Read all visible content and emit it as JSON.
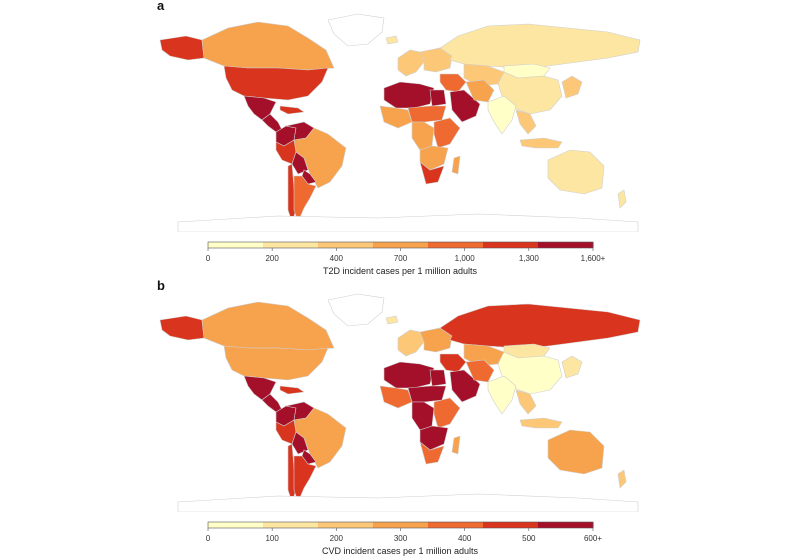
{
  "colors": {
    "ocean": "#ffffff",
    "nodata": "#ffffff",
    "border": "#cfcfcf",
    "bins": [
      "#ffffc7",
      "#fde6a1",
      "#fcc878",
      "#f7a24d",
      "#ef6a30",
      "#d9351e",
      "#a40f2a"
    ]
  },
  "panels": [
    {
      "letter": "a",
      "legend_title": "T2D incident cases per 1 million adults",
      "legend_ticks": [
        "0",
        "200",
        "400",
        "700",
        "1,000",
        "1,300",
        "1,600+"
      ],
      "regions": [
        {
          "name": "Alaska",
          "bin": 5
        },
        {
          "name": "Canada",
          "bin": 3
        },
        {
          "name": "United States",
          "bin": 5
        },
        {
          "name": "Mexico",
          "bin": 6
        },
        {
          "name": "Central America",
          "bin": 6
        },
        {
          "name": "Caribbean",
          "bin": 5
        },
        {
          "name": "Colombia",
          "bin": 6
        },
        {
          "name": "Venezuela",
          "bin": 6
        },
        {
          "name": "Brazil",
          "bin": 3
        },
        {
          "name": "Peru",
          "bin": 5
        },
        {
          "name": "Bolivia",
          "bin": 6
        },
        {
          "name": "Paraguay",
          "bin": 6
        },
        {
          "name": "Chile",
          "bin": 5
        },
        {
          "name": "Argentina",
          "bin": 4
        },
        {
          "name": "Greenland",
          "bin": -1
        },
        {
          "name": "Iceland",
          "bin": 1
        },
        {
          "name": "Western Europe",
          "bin": 2
        },
        {
          "name": "Eastern Europe",
          "bin": 2
        },
        {
          "name": "Russia",
          "bin": 1
        },
        {
          "name": "Central Asia",
          "bin": 2
        },
        {
          "name": "Mongolia",
          "bin": 0
        },
        {
          "name": "China",
          "bin": 1
        },
        {
          "name": "Korea & Japan",
          "bin": 2
        },
        {
          "name": "Middle East",
          "bin": 4
        },
        {
          "name": "Arabian Peninsula",
          "bin": 6
        },
        {
          "name": "Iran",
          "bin": 3
        },
        {
          "name": "India",
          "bin": 0
        },
        {
          "name": "Southeast Asia",
          "bin": 2
        },
        {
          "name": "Indonesia",
          "bin": 2
        },
        {
          "name": "Australia",
          "bin": 1
        },
        {
          "name": "New Zealand",
          "bin": 1
        },
        {
          "name": "North Africa",
          "bin": 6
        },
        {
          "name": "Egypt",
          "bin": 6
        },
        {
          "name": "West Africa",
          "bin": 3
        },
        {
          "name": "Sahel",
          "bin": 4
        },
        {
          "name": "Central Africa",
          "bin": 3
        },
        {
          "name": "East Africa",
          "bin": 4
        },
        {
          "name": "Southern Africa",
          "bin": 3
        },
        {
          "name": "South Africa",
          "bin": 5
        },
        {
          "name": "Madagascar",
          "bin": 3
        },
        {
          "name": "Antarctica",
          "bin": -1
        }
      ]
    },
    {
      "letter": "b",
      "legend_title": "CVD incident cases per 1 million adults",
      "legend_ticks": [
        "0",
        "100",
        "200",
        "300",
        "400",
        "500",
        "600+"
      ],
      "regions": [
        {
          "name": "Alaska",
          "bin": 5
        },
        {
          "name": "Canada",
          "bin": 3
        },
        {
          "name": "United States",
          "bin": 3
        },
        {
          "name": "Mexico",
          "bin": 6
        },
        {
          "name": "Central America",
          "bin": 6
        },
        {
          "name": "Caribbean",
          "bin": 5
        },
        {
          "name": "Colombia",
          "bin": 6
        },
        {
          "name": "Venezuela",
          "bin": 6
        },
        {
          "name": "Brazil",
          "bin": 3
        },
        {
          "name": "Peru",
          "bin": 5
        },
        {
          "name": "Bolivia",
          "bin": 6
        },
        {
          "name": "Paraguay",
          "bin": 6
        },
        {
          "name": "Chile",
          "bin": 5
        },
        {
          "name": "Argentina",
          "bin": 5
        },
        {
          "name": "Greenland",
          "bin": -1
        },
        {
          "name": "Iceland",
          "bin": 1
        },
        {
          "name": "Western Europe",
          "bin": 2
        },
        {
          "name": "Eastern Europe",
          "bin": 3
        },
        {
          "name": "Russia",
          "bin": 5
        },
        {
          "name": "Central Asia",
          "bin": 3
        },
        {
          "name": "Mongolia",
          "bin": 1
        },
        {
          "name": "China",
          "bin": 0
        },
        {
          "name": "Korea & Japan",
          "bin": 1
        },
        {
          "name": "Middle East",
          "bin": 5
        },
        {
          "name": "Arabian Peninsula",
          "bin": 6
        },
        {
          "name": "Iran",
          "bin": 4
        },
        {
          "name": "India",
          "bin": 0
        },
        {
          "name": "Southeast Asia",
          "bin": 2
        },
        {
          "name": "Indonesia",
          "bin": 2
        },
        {
          "name": "Australia",
          "bin": 3
        },
        {
          "name": "New Zealand",
          "bin": 2
        },
        {
          "name": "North Africa",
          "bin": 6
        },
        {
          "name": "Egypt",
          "bin": 6
        },
        {
          "name": "West Africa",
          "bin": 4
        },
        {
          "name": "Sahel",
          "bin": 6
        },
        {
          "name": "Central Africa",
          "bin": 6
        },
        {
          "name": "East Africa",
          "bin": 4
        },
        {
          "name": "Southern Africa",
          "bin": 6
        },
        {
          "name": "South Africa",
          "bin": 4
        },
        {
          "name": "Madagascar",
          "bin": 3
        },
        {
          "name": "Antarctica",
          "bin": -1
        }
      ]
    }
  ]
}
